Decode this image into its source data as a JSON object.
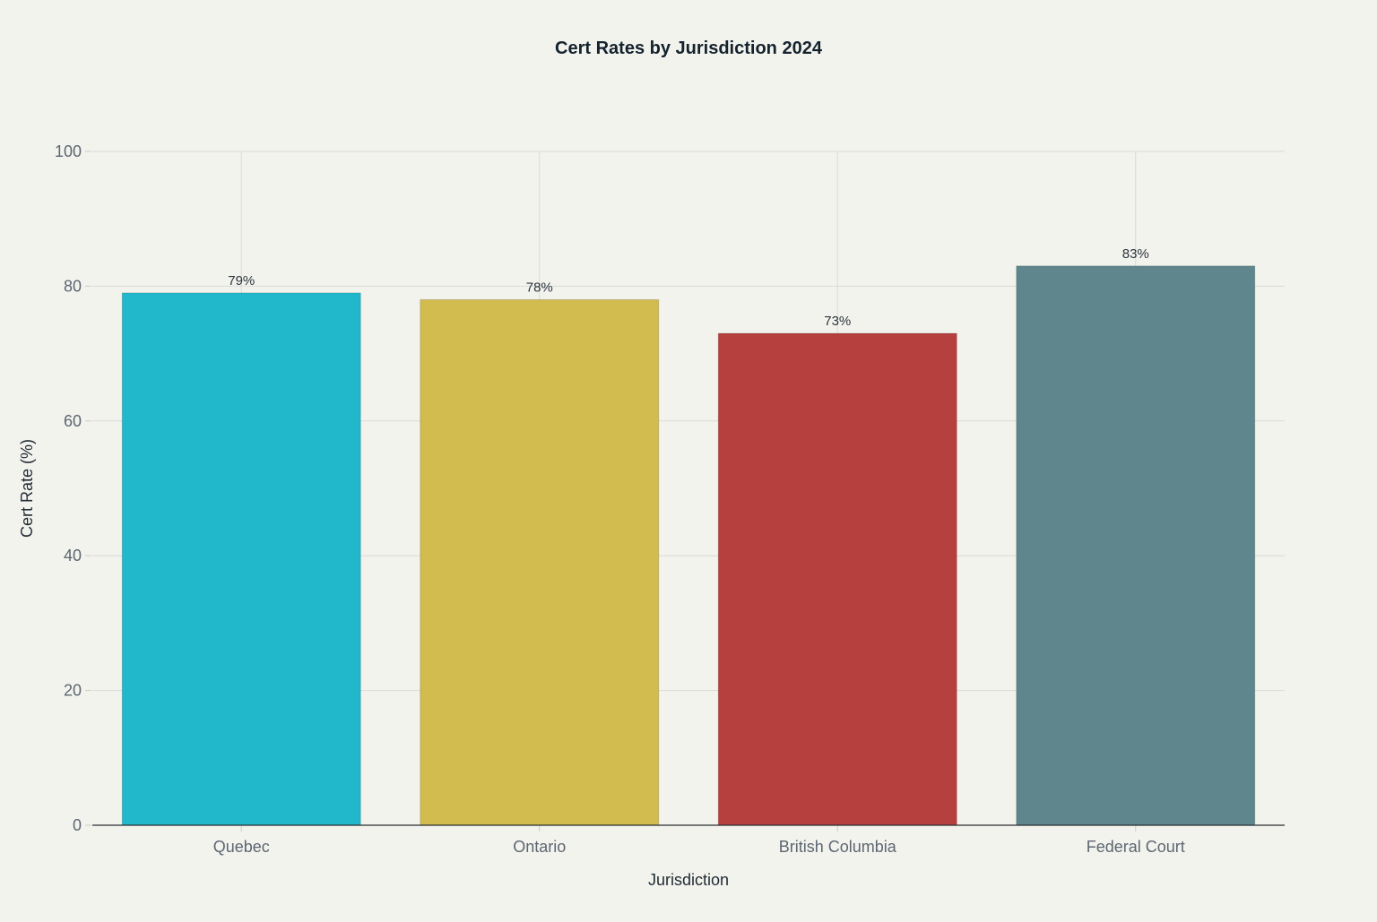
{
  "chart_data": {
    "type": "bar",
    "title": "Cert Rates by Jurisdiction 2024",
    "xlabel": "Jurisdiction",
    "ylabel": "Cert Rate (%)",
    "categories": [
      "Quebec",
      "Ontario",
      "British Columbia",
      "Federal Court"
    ],
    "values": [
      79,
      78,
      73,
      83
    ],
    "data_labels": [
      "79%",
      "78%",
      "73%",
      "83%"
    ],
    "colors": [
      "#22b8cc",
      "#d2bb4f",
      "#b5403e",
      "#5e868c"
    ],
    "ylim": [
      0,
      100
    ],
    "yticks": [
      0,
      20,
      40,
      60,
      80,
      100
    ],
    "ytick_labels": [
      "0",
      "20",
      "40",
      "60",
      "80",
      "100"
    ],
    "grid": true,
    "legend": "none"
  }
}
